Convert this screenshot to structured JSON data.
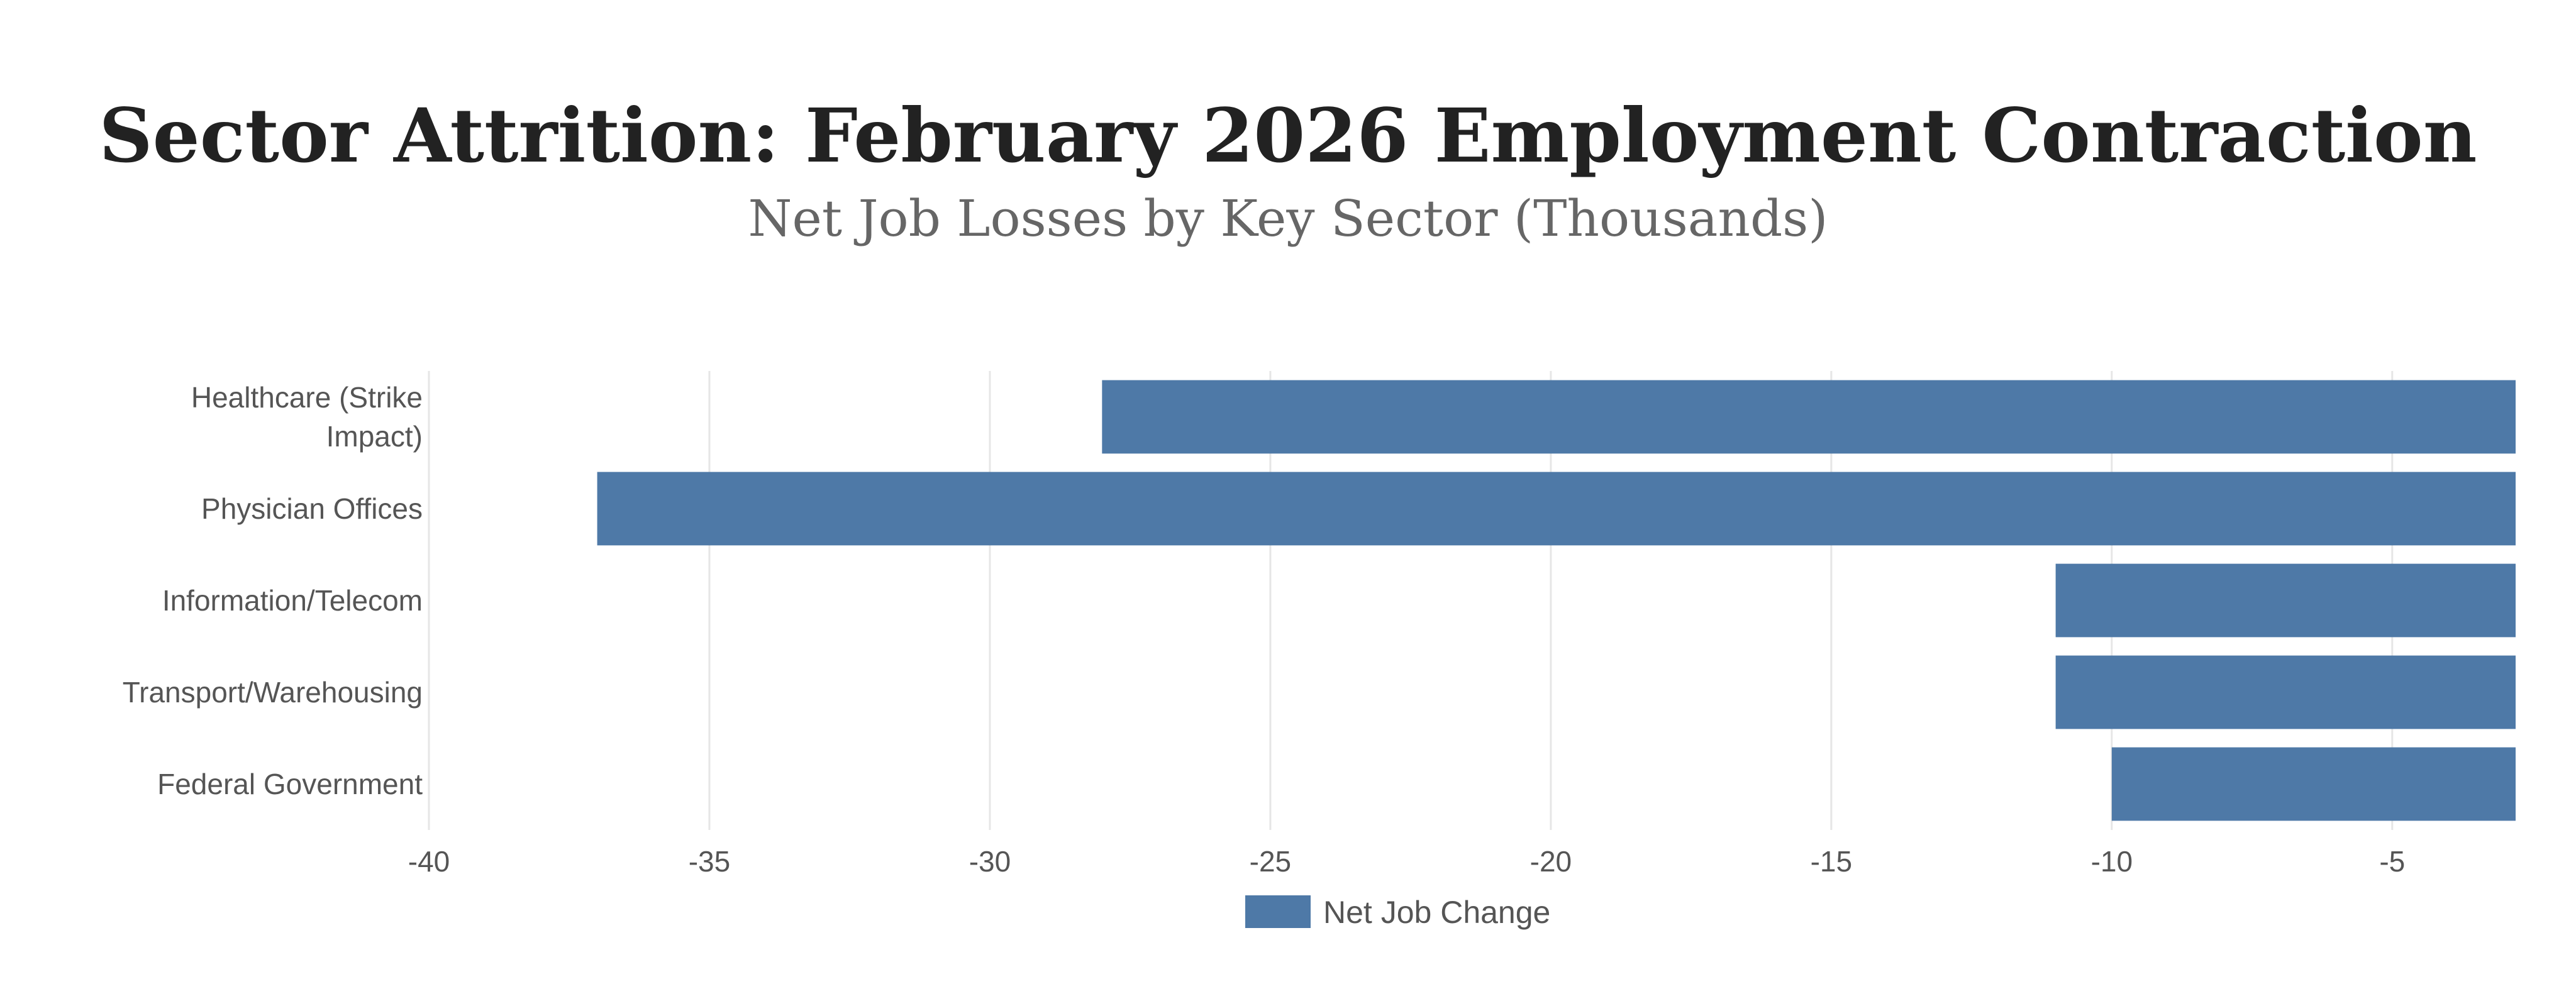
{
  "chart_data": {
    "type": "bar",
    "orientation": "horizontal",
    "title": "Sector Attrition: February 2026 Employment Contraction",
    "subtitle": "Net Job Losses by Key Sector (Thousands)",
    "categories": [
      [
        "Healthcare (Strike",
        "Impact)"
      ],
      [
        "Physician Offices"
      ],
      [
        "Information/Telecom"
      ],
      [
        "Transport/Warehousing"
      ],
      [
        "Federal Government"
      ]
    ],
    "series": [
      {
        "name": "Net Job Change",
        "values": [
          -28,
          -37,
          -11,
          -11,
          -10
        ],
        "color": "#4e79a7"
      }
    ],
    "xlim": [
      -40,
      -2.8
    ],
    "xticks": [
      -40,
      -35,
      -30,
      -25,
      -20,
      -15,
      -10,
      -5
    ],
    "grid": true,
    "legend_position": "bottom-center",
    "xlabel": "",
    "ylabel": ""
  }
}
